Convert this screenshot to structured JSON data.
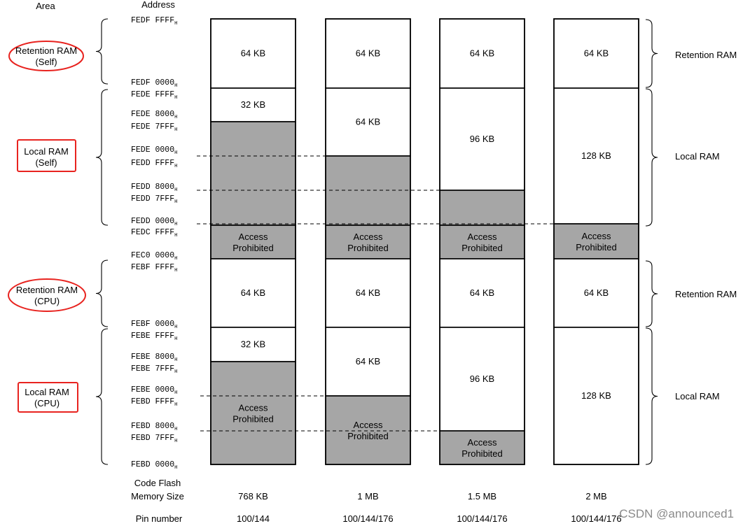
{
  "headers": {
    "area": "Area",
    "address": "Address"
  },
  "left_areas": [
    {
      "line1": "Retention RAM",
      "line2": "(Self)",
      "shape": "ellipse"
    },
    {
      "line1": "Local RAM",
      "line2": "(Self)",
      "shape": "rect"
    },
    {
      "line1": "Retention RAM",
      "line2": "(CPU)",
      "shape": "ellipse"
    },
    {
      "line1": "Local RAM",
      "line2": "(CPU)",
      "shape": "rect"
    }
  ],
  "addresses": [
    "FEDF FFFF",
    "FEDF 0000",
    "FEDE FFFF",
    "FEDE 8000",
    "FEDE 7FFF",
    "FEDE 0000",
    "FEDD FFFF",
    "FEDD 8000",
    "FEDD 7FFF",
    "FEDD 0000",
    "FEDC FFFF",
    "FEC0 0000",
    "FEBF FFFF",
    "FEBF 0000",
    "FEBE FFFF",
    "FEBE 8000",
    "FEBE 7FFF",
    "FEBE 0000",
    "FEBD FFFF",
    "FEBD 8000",
    "FEBD 7FFF",
    "FEBD 0000"
  ],
  "addr_suffix": "H",
  "columns": [
    {
      "memory_size": "768 KB",
      "pins": "100/144",
      "blocks": [
        {
          "text": "64 KB",
          "gray": false
        },
        {
          "text": "32 KB",
          "gray": false
        },
        {
          "text": "",
          "gray": true
        },
        {
          "text": "Access|Prohibited",
          "gray": true
        },
        {
          "text": "64 KB",
          "gray": false
        },
        {
          "text": "32 KB",
          "gray": false
        },
        {
          "text": "Access|Prohibited",
          "gray": true
        }
      ]
    },
    {
      "memory_size": "1 MB",
      "pins": "100/144/176",
      "blocks": [
        {
          "text": "64 KB",
          "gray": false
        },
        {
          "text": "64 KB",
          "gray": false
        },
        {
          "text": "",
          "gray": true
        },
        {
          "text": "Access|Prohibited",
          "gray": true
        },
        {
          "text": "64 KB",
          "gray": false
        },
        {
          "text": "64 KB",
          "gray": false
        },
        {
          "text": "Access|Prohibited",
          "gray": true
        }
      ]
    },
    {
      "memory_size": "1.5 MB",
      "pins": "100/144/176",
      "blocks": [
        {
          "text": "64 KB",
          "gray": false
        },
        {
          "text": "96 KB",
          "gray": false
        },
        {
          "text": "",
          "gray": true
        },
        {
          "text": "Access|Prohibited",
          "gray": true
        },
        {
          "text": "64 KB",
          "gray": false
        },
        {
          "text": "96 KB",
          "gray": false
        },
        {
          "text": "Access|Prohibited",
          "gray": true
        }
      ]
    },
    {
      "memory_size": "2 MB",
      "pins": "100/144/176",
      "blocks": [
        {
          "text": "64 KB",
          "gray": false
        },
        {
          "text": "128 KB",
          "gray": false
        },
        {
          "text": "Access|Prohibited",
          "gray": true
        },
        {
          "text": "64 KB",
          "gray": false
        },
        {
          "text": "128 KB",
          "gray": false
        }
      ]
    }
  ],
  "right_labels": [
    "Retention RAM",
    "Local RAM",
    "Retention RAM",
    "Local RAM"
  ],
  "footer": {
    "code_flash_line1": "Code Flash",
    "code_flash_line2": "Memory Size",
    "pin_number": "Pin number"
  },
  "watermark": "CSDN @announced1"
}
